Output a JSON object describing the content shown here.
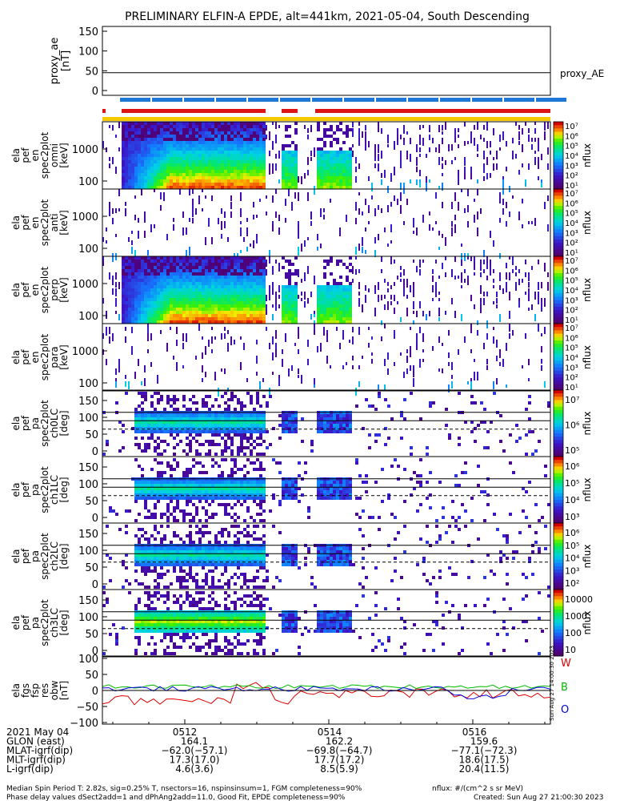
{
  "title": "PRELIMINARY ELFIN-A EPDE, alt=441km, 2021-05-04, South Descending",
  "proxy": {
    "ylabel_lines": [
      "proxy_ae",
      "[nT]"
    ],
    "yticks": [
      "150",
      "100",
      "50",
      "0"
    ],
    "legend": "proxy_AE",
    "value": 45
  },
  "energy_panels": [
    {
      "ylabel_lines": [
        "ela",
        "pef",
        "en",
        "spec2plot",
        "omni",
        "[keV]"
      ],
      "yticks": [
        "1000",
        "100"
      ],
      "cbar": [
        "10⁷",
        "10⁶",
        "10⁵",
        "10⁴",
        "10³",
        "10²",
        "10¹"
      ],
      "cbar_label": "nflux",
      "intensity": "high"
    },
    {
      "ylabel_lines": [
        "ela",
        "pef",
        "en",
        "spec2plot",
        "anti",
        "[keV]"
      ],
      "yticks": [
        "1000",
        "100"
      ],
      "cbar": [
        "10⁷",
        "10⁶",
        "10⁵",
        "10⁴",
        "10³",
        "10²",
        "10¹"
      ],
      "cbar_label": "nflux",
      "intensity": "low"
    },
    {
      "ylabel_lines": [
        "ela",
        "pef",
        "en",
        "spec2plot",
        "perp",
        "[keV]"
      ],
      "yticks": [
        "1000",
        "100"
      ],
      "cbar": [
        "10⁷",
        "10⁶",
        "10⁵",
        "10⁴",
        "10³",
        "10²",
        "10¹"
      ],
      "cbar_label": "nflux",
      "intensity": "high"
    },
    {
      "ylabel_lines": [
        "ela",
        "pef",
        "en",
        "spec2plot",
        "para",
        "[keV]"
      ],
      "yticks": [
        "1000",
        "100"
      ],
      "cbar": [
        "10⁷",
        "10⁶",
        "10⁵",
        "10⁴",
        "10³",
        "10²",
        "10¹"
      ],
      "cbar_label": "nflux",
      "intensity": "low"
    }
  ],
  "pa_panels": [
    {
      "ylabel_lines": [
        "ela",
        "pef",
        "pa",
        "spec2plot",
        "ch0LC",
        "[deg]"
      ],
      "yticks": [
        "150",
        "100",
        "50",
        "0"
      ],
      "cbar": [
        "10⁷",
        "10⁶",
        "10⁵"
      ],
      "cbar_label": "nflux",
      "intensity": "high"
    },
    {
      "ylabel_lines": [
        "ela",
        "pef",
        "pa",
        "spec2plot",
        "ch1LC",
        "[deg]"
      ],
      "yticks": [
        "150",
        "100",
        "50",
        "0"
      ],
      "cbar": [
        "10⁶",
        "10⁵",
        "10⁴",
        "10³"
      ],
      "cbar_label": "nflux",
      "intensity": "mid"
    },
    {
      "ylabel_lines": [
        "ela",
        "pef",
        "pa",
        "spec2plot",
        "ch2LC",
        "[deg]"
      ],
      "yticks": [
        "150",
        "100",
        "50",
        "0"
      ],
      "cbar": [
        "10⁶",
        "10⁵",
        "10⁴",
        "10³",
        "10²"
      ],
      "cbar_label": "nflux",
      "intensity": "mid"
    },
    {
      "ylabel_lines": [
        "ela",
        "pef",
        "pa",
        "spec2plot",
        "ch3LC",
        "[deg]"
      ],
      "yticks": [
        "150",
        "100",
        "50",
        "0"
      ],
      "cbar": [
        "10000",
        "1000",
        "100",
        "10"
      ],
      "cbar_label": "nflux",
      "intensity": "high"
    }
  ],
  "fgs": {
    "ylabel_lines": [
      "ela",
      "fgs",
      "fsp",
      "res",
      "obw",
      "[nT]"
    ],
    "yticks": [
      "100",
      "50",
      "0",
      "−50",
      "−100"
    ],
    "legend": [
      {
        "label": "W",
        "color": "#dd0000"
      },
      {
        "label": "B",
        "color": "#00bb00"
      },
      {
        "label": "O",
        "color": "#0000dd"
      }
    ],
    "side_text": "Sun Aug 27 14:00:30 2023"
  },
  "xaxis": {
    "rows": [
      {
        "label": "2021 May 04",
        "values": [
          "0512",
          "0514",
          "0516"
        ]
      },
      {
        "label": "GLON (east)",
        "values": [
          "164.1",
          "162.2",
          "159.6"
        ]
      },
      {
        "label": "MLAT-igrf(dip)",
        "values": [
          "−62.0(−57.1)",
          "−69.8(−64.7)",
          "−77.1(−72.3)"
        ]
      },
      {
        "label": "MLT-igrf(dip)",
        "values": [
          "17.3(17.0)",
          "17.7(17.2)",
          "18.6(17.5)"
        ]
      },
      {
        "label": "L-igrf(dip)",
        "values": [
          "4.6(3.6)",
          "8.5(5.9)",
          "20.4(11.5)"
        ]
      }
    ]
  },
  "footer": {
    "line1": "Median Spin Period T: 2.82s, sig=0.25% T, nsectors=16, nspinsinsum=1, FGM completeness=90%",
    "line2": "Phase delay values dSect2add=1 and dPhAng2add=11.0, Good Fit, EPDE completeness=90%",
    "units": "nflux: #/(cm^2 s sr MeV)",
    "created": "Created: Sun Aug 27 21:00:30 2023"
  },
  "colors": {
    "bar_blue": "#1e78d7",
    "bar_red": "#dc1414",
    "bar_yellow": "#f5c800"
  },
  "chart_data": {
    "type": "heatmap",
    "title": "PRELIMINARY ELFIN-A EPDE, alt=441km, 2021-05-04, South Descending",
    "x_ticks": [
      "0512",
      "0514",
      "0516"
    ],
    "panels": [
      "proxy_ae [nT]",
      "ela pef en spec2plot omni [keV]",
      "ela pef en spec2plot anti [keV]",
      "ela pef en spec2plot perp [keV]",
      "ela pef en spec2plot para [keV]",
      "ela pef pa spec2plot ch0LC [deg]",
      "ela pef pa spec2plot ch1LC [deg]",
      "ela pef pa spec2plot ch2LC [deg]",
      "ela pef pa spec2plot ch3LC [deg]",
      "ela fgs fsp res obw [nT]"
    ],
    "proxy_ae_value": 45,
    "colorbar_label": "nflux"
  }
}
